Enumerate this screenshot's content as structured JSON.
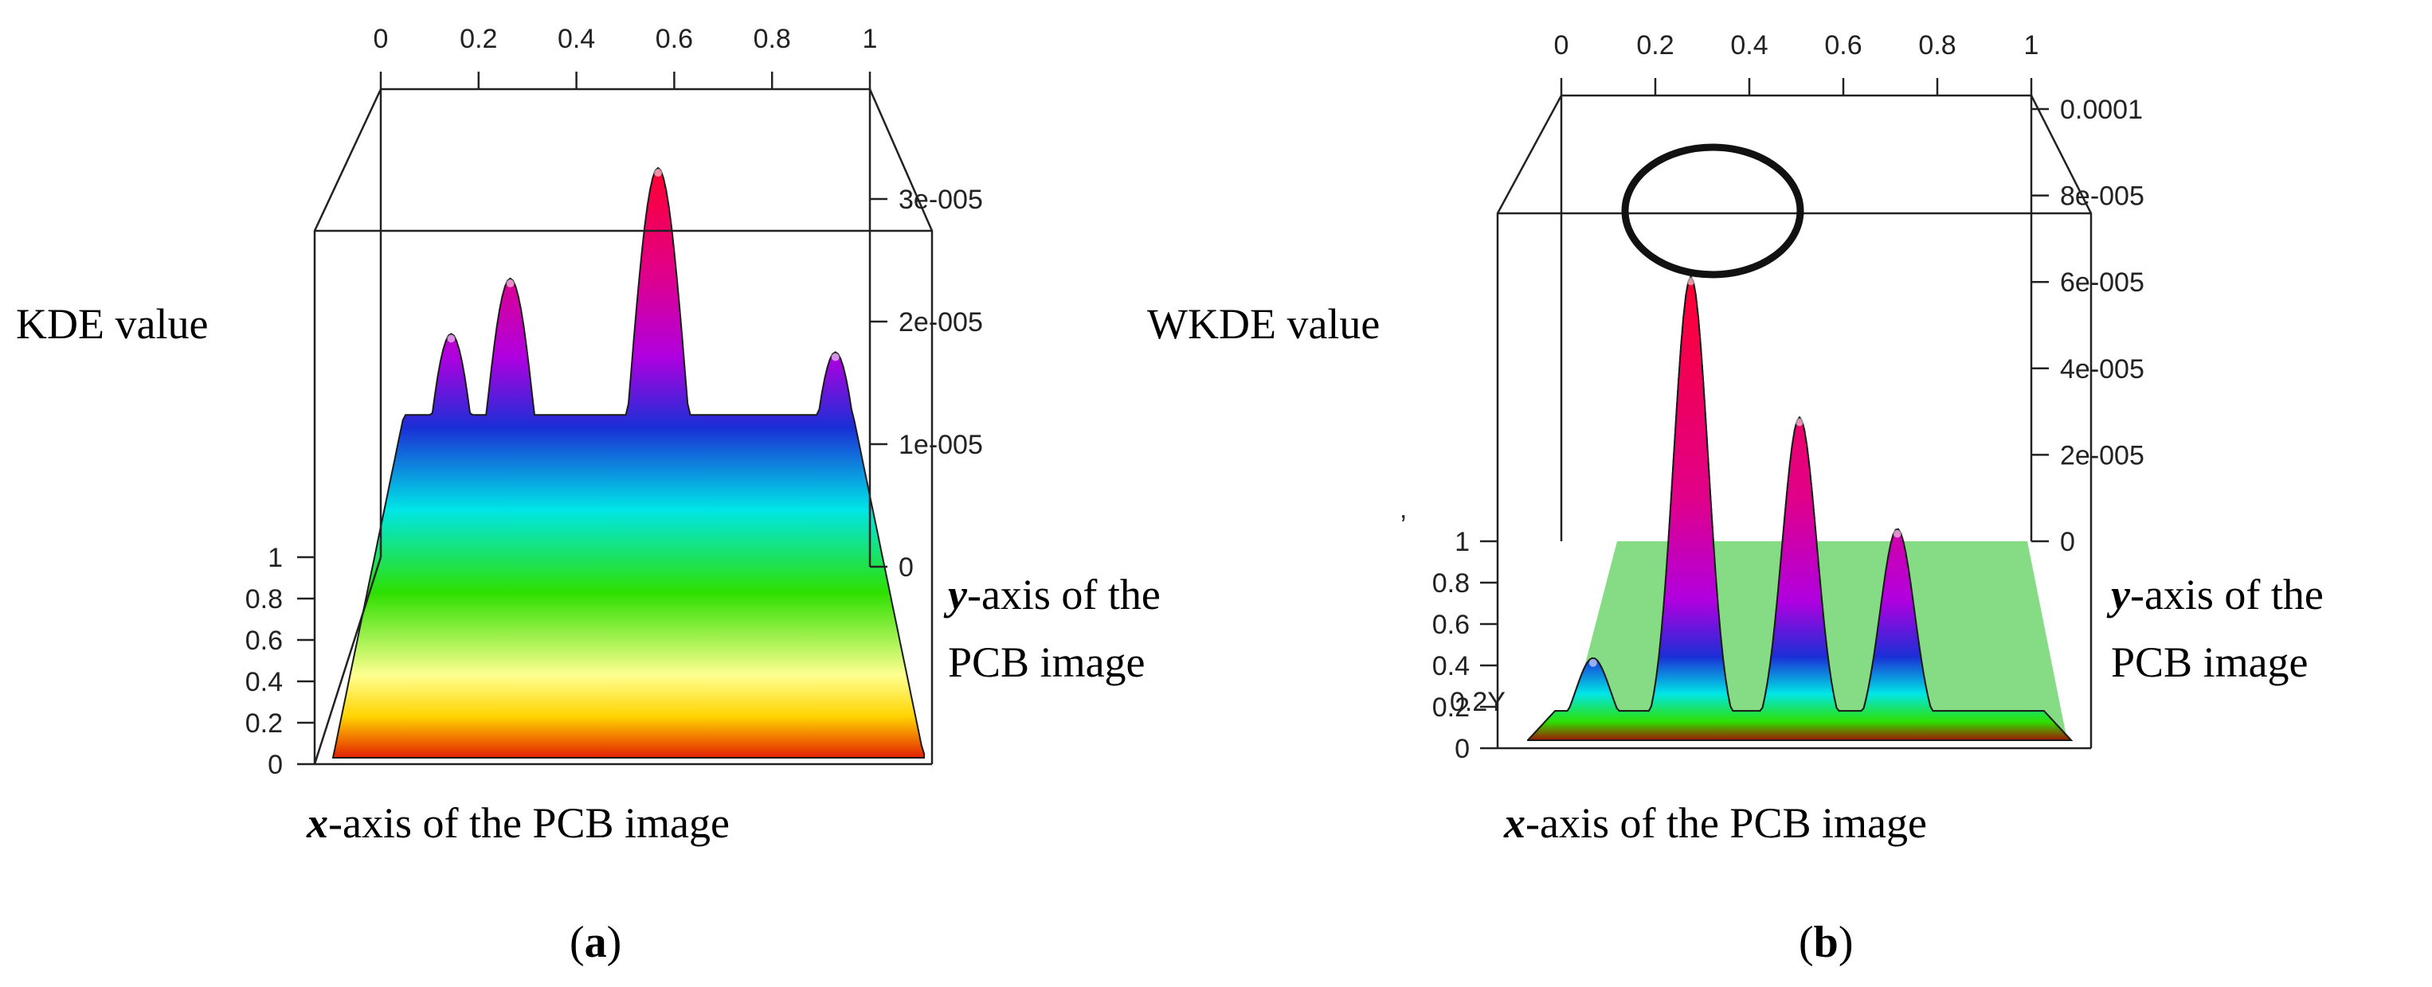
{
  "chart_data": [
    {
      "type": "surface3d",
      "panel_label": "a",
      "zlabel": "KDE value",
      "xlabel": "x-axis of the PCB image",
      "ylabel": "y-axis of the PCB image",
      "xlabel_italic": "x",
      "xlabel_rest": "-axis of the PCB image",
      "ylabel_italic": "y",
      "ylabel_line1_rest": "-axis of the",
      "ylabel_line2": "PCB image",
      "x_ticks": [
        "0",
        "0.2",
        "0.4",
        "0.6",
        "0.8",
        "1"
      ],
      "y_ticks": [
        "0",
        "0.2",
        "0.4",
        "0.6",
        "0.8",
        "1"
      ],
      "z_ticks": [
        "0",
        "1e-005",
        "2e-005",
        "3e-005"
      ],
      "xlim": [
        0,
        1
      ],
      "ylim": [
        0,
        1
      ],
      "zlim": [
        0,
        3e-05
      ],
      "peak_z": 3.2e-05,
      "peaks": [
        {
          "x": 0.55,
          "y": 0.6,
          "z": 3.2e-05
        },
        {
          "x": 0.3,
          "y": 0.6,
          "z": 2.6e-05
        },
        {
          "x": 0.2,
          "y": 0.7,
          "z": 2.3e-05
        },
        {
          "x": 0.85,
          "y": 0.7,
          "z": 2.2e-05
        }
      ]
    },
    {
      "type": "surface3d",
      "panel_label": "b",
      "zlabel": "WKDE value",
      "xlabel": "x-axis of the PCB image",
      "ylabel": "y-axis of the PCB image",
      "xlabel_italic": "x",
      "xlabel_rest": "-axis of the PCB image",
      "ylabel_italic": "y",
      "ylabel_line1_rest": "-axis of the",
      "ylabel_line2": "PCB image",
      "x_ticks": [
        "0",
        "0.2",
        "0.4",
        "0.6",
        "0.8",
        "1"
      ],
      "y_ticks": [
        "0",
        "0.2",
        "0.4",
        "0.6",
        "0.8",
        "1"
      ],
      "z_ticks": [
        "0",
        "2e-005",
        "4e-005",
        "6e-005",
        "8e-005",
        "0.0001"
      ],
      "xlim": [
        0,
        1
      ],
      "ylim": [
        0,
        1
      ],
      "zlim": [
        0,
        0.0001
      ],
      "peak_z": 7.9e-05,
      "highlighted_peak": {
        "x": 0.3,
        "y": 0.55
      },
      "peaks": [
        {
          "x": 0.3,
          "y": 0.55,
          "z": 7.9e-05
        },
        {
          "x": 0.5,
          "y": 0.8,
          "z": 5.5e-05
        },
        {
          "x": 0.68,
          "y": 0.7,
          "z": 3.6e-05
        },
        {
          "x": 0.12,
          "y": 0.7,
          "z": 1.4e-05
        }
      ]
    }
  ],
  "colors": {
    "gradient_bottom_to_top": [
      "#e32000",
      "#ffd400",
      "#ffff90",
      "#2ee000",
      "#00e6e6",
      "#1a2fd6",
      "#b000e0",
      "#e0008a",
      "#ff0030"
    ],
    "frame": "#222222",
    "highlight_circle": "#111111"
  },
  "figure_text": {
    "stray_mark_b": "ʼ",
    "overlap_label_b": "0.2Y"
  }
}
